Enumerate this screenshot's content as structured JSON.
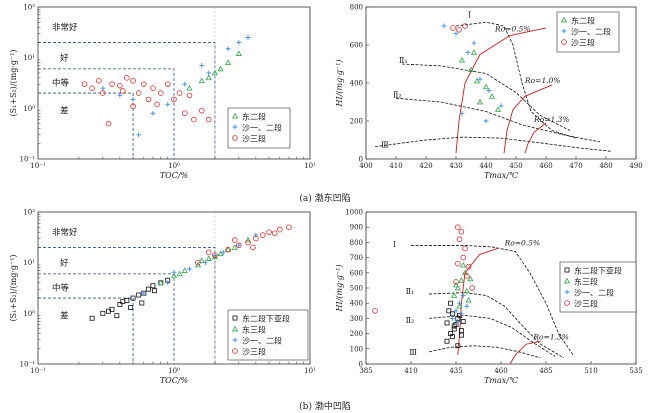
{
  "figure": {
    "caption_a": "(a) 渤东凹陷",
    "caption_b": "(b) 渤中凹陷"
  },
  "colors": {
    "frame": "#333333",
    "grid_dash": "#2a4e8c",
    "curve": "#111111",
    "ro_line": "#d11f1f",
    "dong2": "#2fa84a",
    "sha12": "#3f8fe0",
    "sha3": "#e03030",
    "dong2_lower": "#111111"
  },
  "chart_data": [
    {
      "id": "a-left",
      "type": "scatter",
      "scale": "log-log",
      "xlabel": "TOC/%",
      "ylabel": "(S₁+S₂)/(mg·g⁻¹)",
      "xlim": [
        0.1,
        10
      ],
      "ylim": [
        0.1,
        100
      ],
      "xticks": [
        "10⁻¹",
        "10⁰",
        "10¹"
      ],
      "yticks": [
        "10⁻¹",
        "10⁰",
        "10¹",
        "10²"
      ],
      "class_labels": [
        "非常好",
        "好",
        "中等",
        "差"
      ],
      "thresholds": {
        "toc": [
          0.5,
          1.0,
          2.0
        ],
        "s1s2": [
          2,
          6,
          20
        ]
      },
      "legend": [
        "东二段",
        "沙一、二段",
        "沙三段"
      ],
      "series": [
        {
          "name": "东二段",
          "marker": "triangle",
          "x": [
            1.3,
            1.6,
            2.0,
            2.5,
            3.0,
            2.2,
            1.8
          ],
          "y": [
            2.5,
            3.5,
            5.0,
            8.0,
            12.0,
            6.0,
            4.0
          ]
        },
        {
          "name": "沙一、二段",
          "marker": "cross",
          "x": [
            0.3,
            0.5,
            0.7,
            0.9,
            1.2,
            1.8,
            2.5,
            3.0,
            3.5,
            0.55,
            0.4,
            1.6
          ],
          "y": [
            2.5,
            1.5,
            0.8,
            1.2,
            3.0,
            5.0,
            15.0,
            20.0,
            25.0,
            0.3,
            1.8,
            7.0
          ]
        },
        {
          "name": "沙三段",
          "marker": "circle",
          "x": [
            0.22,
            0.25,
            0.28,
            0.3,
            0.35,
            0.4,
            0.45,
            0.5,
            0.55,
            0.6,
            0.65,
            0.7,
            0.8,
            0.9,
            1.0,
            1.1,
            1.2,
            1.4,
            1.6,
            1.8,
            0.42,
            0.75,
            1.3,
            0.5,
            0.33
          ],
          "y": [
            3.0,
            2.5,
            3.5,
            2.0,
            3.0,
            2.8,
            4.0,
            3.5,
            2.0,
            3.0,
            1.5,
            2.5,
            2.0,
            3.0,
            1.5,
            2.0,
            0.8,
            0.6,
            0.9,
            0.6,
            2.2,
            1.2,
            1.8,
            1.1,
            0.5
          ]
        }
      ]
    },
    {
      "id": "a-right",
      "type": "scatter",
      "xlabel": "Tmax/℃",
      "ylabel": "HI/(mg·g⁻¹)",
      "xlim": [
        400,
        490
      ],
      "ylim": [
        0,
        800
      ],
      "xticks": [
        400,
        410,
        420,
        430,
        440,
        450,
        460,
        470,
        480,
        490
      ],
      "yticks": [
        0,
        200,
        400,
        600,
        800
      ],
      "kerogen_labels": [
        "Ⅰ",
        "Ⅱ₁",
        "Ⅱ₂",
        "Ⅲ"
      ],
      "ro_labels": [
        "Ro=0.5%",
        "Ro=1.0%",
        "Ro=1.3%"
      ],
      "legend": [
        "东二段",
        "沙一、二段",
        "沙三段"
      ],
      "series": [
        {
          "name": "东二段",
          "marker": "triangle",
          "x": [
            432,
            435,
            437,
            440,
            442,
            438,
            444,
            436
          ],
          "y": [
            520,
            470,
            410,
            380,
            330,
            300,
            260,
            560
          ]
        },
        {
          "name": "沙一、二段",
          "marker": "cross",
          "x": [
            426,
            430,
            434,
            438,
            441,
            445,
            432,
            440,
            436
          ],
          "y": [
            700,
            660,
            560,
            420,
            360,
            280,
            240,
            200,
            610
          ]
        },
        {
          "name": "沙三段",
          "marker": "circle",
          "x": [
            429,
            431,
            433
          ],
          "y": [
            690,
            680,
            700
          ]
        }
      ]
    },
    {
      "id": "b-left",
      "type": "scatter",
      "scale": "log-log",
      "xlabel": "TOC/%",
      "ylabel": "(S₁+S₂)/(mg·g⁻¹)",
      "xlim": [
        0.1,
        10
      ],
      "ylim": [
        0.1,
        100
      ],
      "xticks": [
        "10⁻¹",
        "10⁰",
        "10¹"
      ],
      "yticks": [
        "10⁻¹",
        "10⁰",
        "10¹",
        "10²"
      ],
      "class_labels": [
        "非常好",
        "好",
        "中等",
        "差"
      ],
      "thresholds": {
        "toc": [
          0.5,
          1.0,
          2.0
        ],
        "s1s2": [
          2,
          6,
          20
        ]
      },
      "legend": [
        "东二段下亚段",
        "东三段",
        "沙一、二段",
        "沙三段"
      ],
      "series": [
        {
          "name": "东二段下亚段",
          "marker": "square",
          "x": [
            0.25,
            0.3,
            0.35,
            0.4,
            0.45,
            0.5,
            0.55,
            0.6,
            0.65,
            0.7,
            0.8,
            0.9,
            0.38,
            0.48,
            0.58,
            0.72,
            0.33,
            0.42
          ],
          "y": [
            0.8,
            1.0,
            1.2,
            1.5,
            1.8,
            2.0,
            2.3,
            2.5,
            3.0,
            3.5,
            4.0,
            4.5,
            0.9,
            1.3,
            1.6,
            2.8,
            1.1,
            1.7
          ]
        },
        {
          "name": "东三段",
          "marker": "triangle",
          "x": [
            0.8,
            1.0,
            1.2,
            1.5,
            1.8,
            2.2,
            2.8,
            3.5,
            1.1,
            1.6,
            2.0,
            2.5
          ],
          "y": [
            4.0,
            5.5,
            7.0,
            9.0,
            12.0,
            15.0,
            20.0,
            28.0,
            6.0,
            11.0,
            13.0,
            18.0
          ]
        },
        {
          "name": "沙一、二段",
          "marker": "cross",
          "x": [
            0.6,
            0.9,
            1.3,
            1.7,
            2.3,
            3.0,
            4.0,
            1.0,
            2.0
          ],
          "y": [
            2.5,
            4.0,
            7.5,
            10.0,
            16.0,
            22.0,
            35.0,
            6.5,
            14.0
          ]
        },
        {
          "name": "沙三段",
          "marker": "circle",
          "x": [
            1.5,
            2.0,
            2.5,
            3.0,
            3.5,
            4.0,
            4.5,
            5.0,
            6.0,
            7.0,
            2.8,
            3.8,
            5.5,
            1.8
          ],
          "y": [
            10.0,
            14.0,
            18.0,
            22.0,
            25.0,
            30.0,
            35.0,
            40.0,
            45.0,
            50.0,
            28.0,
            20.0,
            38.0,
            16.0
          ]
        }
      ]
    },
    {
      "id": "b-right",
      "type": "scatter",
      "xlabel": "Tmax/℃",
      "ylabel": "HI/(mg·g⁻¹)",
      "xlim": [
        385,
        535
      ],
      "ylim": [
        0,
        1000
      ],
      "xticks": [
        385,
        410,
        435,
        460,
        485,
        510,
        535
      ],
      "yticks": [
        0,
        100,
        200,
        300,
        400,
        500,
        600,
        700,
        800,
        900,
        1000
      ],
      "kerogen_labels": [
        "Ⅰ",
        "Ⅱ₁",
        "Ⅱ₂",
        "Ⅲ"
      ],
      "ro_labels": [
        "Ro=0.5%",
        "Ro=1.3%"
      ],
      "legend": [
        "东二段下亚段",
        "东三段",
        "沙一、二段",
        "沙三段"
      ],
      "series": [
        {
          "name": "东二段下亚段",
          "marker": "square",
          "x": [
            430,
            432,
            434,
            436,
            438,
            431,
            433,
            435,
            437,
            439,
            432,
            436,
            434,
            430,
            438,
            433
          ],
          "y": [
            150,
            200,
            250,
            300,
            220,
            350,
            180,
            260,
            320,
            280,
            400,
            120,
            230,
            270,
            190,
            330
          ]
        },
        {
          "name": "东三段",
          "marker": "triangle",
          "x": [
            434,
            436,
            438,
            440,
            442,
            437,
            435,
            441,
            439,
            443
          ],
          "y": [
            450,
            500,
            550,
            600,
            420,
            380,
            520,
            480,
            650,
            560
          ]
        },
        {
          "name": "沙一、二段",
          "marker": "cross",
          "x": [
            433,
            435,
            437,
            439,
            441,
            436,
            438
          ],
          "y": [
            300,
            350,
            400,
            450,
            380,
            280,
            330
          ]
        },
        {
          "name": "沙三段",
          "marker": "circle",
          "x": [
            436,
            438,
            437,
            440,
            439,
            442,
            441,
            435,
            390,
            444,
            436
          ],
          "y": [
            900,
            870,
            820,
            760,
            700,
            640,
            580,
            540,
            350,
            500,
            660
          ]
        }
      ]
    }
  ]
}
